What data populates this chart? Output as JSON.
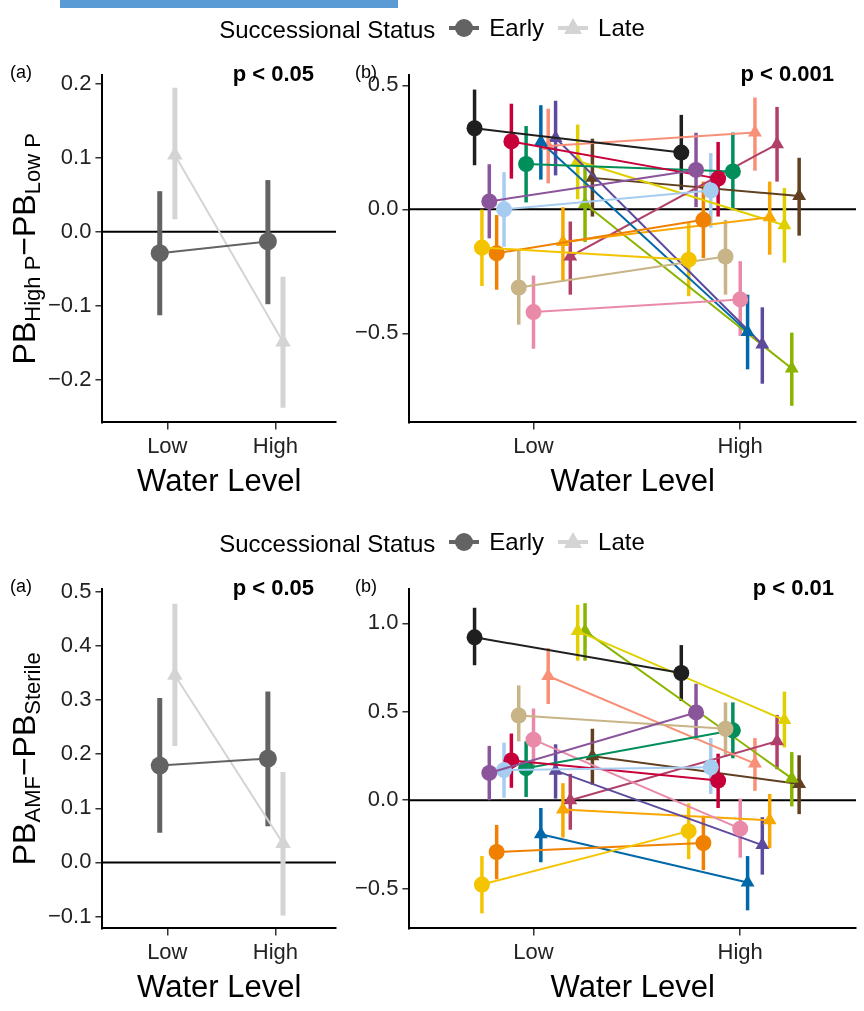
{
  "chart_data": [
    {
      "type": "line",
      "ylabel": "PB$_{High P}$−PB$_{Low P}$",
      "xlabel": "Water Level",
      "legend": "top",
      "legend_title": "Successional Status",
      "grid": false,
      "annotations": [
        "(a)",
        "p < 0.05"
      ],
      "categories": [
        "Low",
        "High"
      ],
      "ylim": [
        -0.258,
        0.212
      ],
      "yticks": [
        {
          "value": -0.2,
          "label": "−0.2"
        },
        {
          "value": -0.1,
          "label": "−0.1"
        },
        {
          "value": 0,
          "label": "0.0"
        },
        0.1,
        0.2
      ],
      "ref_lines": [
        {
          "axis": "y",
          "value": 0,
          "color": "#000000"
        }
      ],
      "series": [
        {
          "name": "Early",
          "color": "#636363",
          "marker": "circle",
          "values": [
            -0.029,
            -0.013
          ],
          "errors": [
            [
              -0.113,
              0.055
            ],
            [
              -0.098,
              0.07
            ]
          ]
        },
        {
          "name": "Late",
          "color": "#d4d4d4",
          "marker": "triangle",
          "values": [
            0.104,
            -0.149
          ],
          "errors": [
            [
              0.017,
              0.195
            ],
            [
              -0.238,
              -0.061
            ]
          ]
        }
      ]
    },
    {
      "type": "line",
      "xlabel": "Water Level",
      "grid": false,
      "annotations": [
        "(b)",
        "p < 0.001"
      ],
      "categories": [
        "Low",
        "High"
      ],
      "ylim": [
        -0.859,
        0.541
      ],
      "yticks": [
        {
          "value": -0.5,
          "label": "−0.5"
        },
        {
          "value": 0,
          "label": "0.0"
        },
        0.5
      ],
      "ref_lines": [
        {
          "axis": "y",
          "value": 0,
          "color": "#000000"
        }
      ],
      "series": [
        {
          "color": "#1f1f1f",
          "marker": "circle",
          "values": [
            0.327,
            0.229
          ],
          "errors": [
            [
              0.178,
              0.483
            ],
            [
              0.079,
              0.381
            ]
          ]
        },
        {
          "color": "#f5c400",
          "marker": "circle",
          "values": [
            -0.154,
            -0.203
          ],
          "errors": [
            [
              -0.309,
              -0.001
            ],
            [
              -0.35,
              -0.055
            ]
          ]
        },
        {
          "color": "#8b559c",
          "marker": "circle",
          "values": [
            0.032,
            0.159
          ],
          "errors": [
            [
              -0.117,
              0.182
            ],
            [
              0.009,
              0.309
            ]
          ]
        },
        {
          "color": "#f08000",
          "marker": "circle",
          "values": [
            -0.177,
            -0.042
          ],
          "errors": [
            [
              -0.324,
              -0.023
            ],
            [
              -0.196,
              0.112
            ]
          ]
        },
        {
          "color": "#a6cdf0",
          "marker": "circle",
          "values": [
            0.0,
            0.076
          ],
          "errors": [
            [
              -0.151,
              0.15
            ],
            [
              -0.074,
              0.227
            ]
          ]
        },
        {
          "color": "#c8003a",
          "marker": "circle",
          "values": [
            0.274,
            0.124
          ],
          "errors": [
            [
              0.124,
              0.426
            ],
            [
              -0.029,
              0.272
            ]
          ]
        },
        {
          "color": "#c8b487",
          "marker": "circle",
          "values": [
            -0.315,
            -0.19
          ],
          "errors": [
            [
              -0.465,
              -0.164
            ],
            [
              -0.344,
              -0.042
            ]
          ]
        },
        {
          "color": "#008f5a",
          "marker": "circle",
          "values": [
            0.183,
            0.153
          ],
          "errors": [
            [
              0.028,
              0.336
            ],
            [
              0.003,
              0.31
            ]
          ]
        },
        {
          "color": "#e88aa8",
          "marker": "circle",
          "values": [
            -0.414,
            -0.363
          ],
          "errors": [
            [
              -0.562,
              -0.267
            ],
            [
              -0.51,
              -0.209
            ]
          ]
        },
        {
          "color": "#0068a8",
          "marker": "triangle",
          "values": [
            0.272,
            -0.494
          ],
          "errors": [
            [
              0.12,
              0.42
            ],
            [
              -0.645,
              -0.344
            ]
          ]
        },
        {
          "color": "#f89078",
          "marker": "triangle",
          "values": [
            0.256,
            0.31
          ],
          "errors": [
            [
              0.105,
              0.406
            ],
            [
              0.156,
              0.451
            ]
          ]
        },
        {
          "color": "#5e4a9c",
          "marker": "triangle",
          "values": [
            0.288,
            -0.545
          ],
          "errors": [
            [
              0.137,
              0.438
            ],
            [
              -0.703,
              -0.395
            ]
          ]
        },
        {
          "color": "#f8a800",
          "marker": "triangle",
          "values": [
            -0.132,
            -0.032
          ],
          "errors": [
            [
              -0.292,
              0.009
            ],
            [
              -0.183,
              0.112
            ]
          ]
        },
        {
          "color": "#b0406a",
          "marker": "triangle",
          "values": [
            -0.19,
            0.263
          ],
          "errors": [
            [
              -0.344,
              -0.049
            ],
            [
              0.112,
              0.413
            ]
          ]
        },
        {
          "color": "#e0d000",
          "marker": "triangle",
          "values": [
            0.195,
            -0.064
          ],
          "errors": [
            [
              0.041,
              0.342
            ],
            [
              -0.215,
              0.086
            ]
          ]
        },
        {
          "color": "#8ab400",
          "marker": "triangle",
          "values": [
            0.022,
            -0.642
          ],
          "errors": [
            [
              -0.132,
              0.169
            ],
            [
              -0.792,
              -0.497
            ]
          ]
        },
        {
          "color": "#604020",
          "marker": "triangle",
          "values": [
            0.127,
            0.054
          ],
          "errors": [
            [
              -0.029,
              0.285
            ],
            [
              -0.106,
              0.208
            ]
          ]
        }
      ]
    },
    {
      "type": "line",
      "ylabel": "PB$_{AMF}$−PB$_{Sterile}$",
      "xlabel": "Water Level",
      "legend": "top",
      "legend_title": "Successional Status",
      "grid": false,
      "annotations": [
        "(a)",
        "p < 0.05"
      ],
      "categories": [
        "Low",
        "High"
      ],
      "ylim": [
        -0.122,
        0.505
      ],
      "yticks": [
        {
          "value": -0.1,
          "label": "−0.1"
        },
        {
          "value": 0,
          "label": "0.0"
        },
        0.1,
        0.2,
        0.3,
        0.4,
        0.5
      ],
      "ref_lines": [
        {
          "axis": "y",
          "value": 0,
          "color": "#000000"
        }
      ],
      "series": [
        {
          "name": "Early",
          "color": "#636363",
          "marker": "circle",
          "values": [
            0.179,
            0.192
          ],
          "errors": [
            [
              0.055,
              0.304
            ],
            [
              0.067,
              0.316
            ]
          ]
        },
        {
          "name": "Late",
          "color": "#d4d4d4",
          "marker": "triangle",
          "values": [
            0.346,
            0.035
          ],
          "errors": [
            [
              0.215,
              0.478
            ],
            [
              -0.098,
              0.167
            ]
          ]
        }
      ]
    },
    {
      "type": "line",
      "xlabel": "Water Level",
      "grid": false,
      "annotations": [
        "(b)",
        "p < 0.01"
      ],
      "categories": [
        "Low",
        "High"
      ],
      "ylim": [
        -0.725,
        1.193
      ],
      "yticks": [
        {
          "value": -0.5,
          "label": "−0.5"
        },
        {
          "value": 0,
          "label": "0.0"
        },
        0.5,
        {
          "value": 1,
          "label": "1.0"
        }
      ],
      "ref_lines": [
        {
          "axis": "y",
          "value": 0,
          "color": "#000000"
        }
      ],
      "series": [
        {
          "color": "#1f1f1f",
          "marker": "circle",
          "values": [
            0.921,
            0.719
          ],
          "errors": [
            [
              0.763,
              1.088
            ],
            [
              0.561,
              0.877
            ]
          ]
        },
        {
          "color": "#f5c400",
          "marker": "circle",
          "values": [
            -0.477,
            -0.175
          ],
          "errors": [
            [
              -0.64,
              -0.316
            ],
            [
              -0.333,
              -0.018
            ]
          ]
        },
        {
          "color": "#8b559c",
          "marker": "circle",
          "values": [
            0.154,
            0.496
          ],
          "errors": [
            [
              0.0,
              0.307
            ],
            [
              0.342,
              0.658
            ]
          ]
        },
        {
          "color": "#f08000",
          "marker": "circle",
          "values": [
            -0.293,
            -0.242
          ],
          "errors": [
            [
              -0.447,
              -0.14
            ],
            [
              -0.395,
              -0.088
            ]
          ]
        },
        {
          "color": "#a6cdf0",
          "marker": "circle",
          "values": [
            0.17,
            0.186
          ],
          "errors": [
            [
              0.014,
              0.325
            ],
            [
              0.035,
              0.351
            ]
          ]
        },
        {
          "color": "#c8003a",
          "marker": "circle",
          "values": [
            0.225,
            0.111
          ],
          "errors": [
            [
              0.07,
              0.377
            ],
            [
              -0.044,
              0.263
            ]
          ]
        },
        {
          "color": "#c8b487",
          "marker": "circle",
          "values": [
            0.479,
            0.404
          ],
          "errors": [
            [
              0.333,
              0.649
            ],
            [
              0.246,
              0.553
            ]
          ]
        },
        {
          "color": "#008f5a",
          "marker": "circle",
          "values": [
            0.181,
            0.395
          ],
          "errors": [
            [
              0.018,
              0.333
            ],
            [
              0.237,
              0.553
            ]
          ]
        },
        {
          "color": "#e88aa8",
          "marker": "circle",
          "values": [
            0.342,
            -0.161
          ],
          "errors": [
            [
              0.193,
              0.518
            ],
            [
              -0.325,
              0.009
            ]
          ]
        },
        {
          "color": "#0068a8",
          "marker": "triangle",
          "values": [
            -0.193,
            -0.465
          ],
          "errors": [
            [
              -0.351,
              -0.044
            ],
            [
              -0.623,
              -0.316
            ]
          ]
        },
        {
          "color": "#f89078",
          "marker": "triangle",
          "values": [
            0.702,
            0.207
          ],
          "errors": [
            [
              0.544,
              0.86
            ],
            [
              0.053,
              0.351
            ]
          ]
        },
        {
          "color": "#5e4a9c",
          "marker": "triangle",
          "values": [
            0.167,
            -0.254
          ],
          "errors": [
            [
              0.009,
              0.316
            ],
            [
              -0.421,
              -0.096
            ]
          ]
        },
        {
          "color": "#f8a800",
          "marker": "triangle",
          "values": [
            -0.053,
            -0.114
          ],
          "errors": [
            [
              -0.211,
              0.096
            ],
            [
              -0.272,
              0.035
            ]
          ]
        },
        {
          "color": "#b0406a",
          "marker": "triangle",
          "values": [
            0.0,
            0.333
          ],
          "errors": [
            [
              -0.167,
              0.149
            ],
            [
              0.175,
              0.482
            ]
          ]
        },
        {
          "color": "#e0d000",
          "marker": "triangle",
          "values": [
            0.956,
            0.453
          ],
          "errors": [
            [
              0.789,
              1.105
            ],
            [
              0.298,
              0.614
            ]
          ]
        },
        {
          "color": "#8ab400",
          "marker": "triangle",
          "values": [
            0.956,
            0.123
          ],
          "errors": [
            [
              0.789,
              1.114
            ],
            [
              -0.035,
              0.272
            ]
          ]
        },
        {
          "color": "#604020",
          "marker": "triangle",
          "values": [
            0.249,
            0.091
          ],
          "errors": [
            [
              0.088,
              0.404
            ],
            [
              -0.079,
              0.254
            ]
          ]
        }
      ]
    }
  ]
}
